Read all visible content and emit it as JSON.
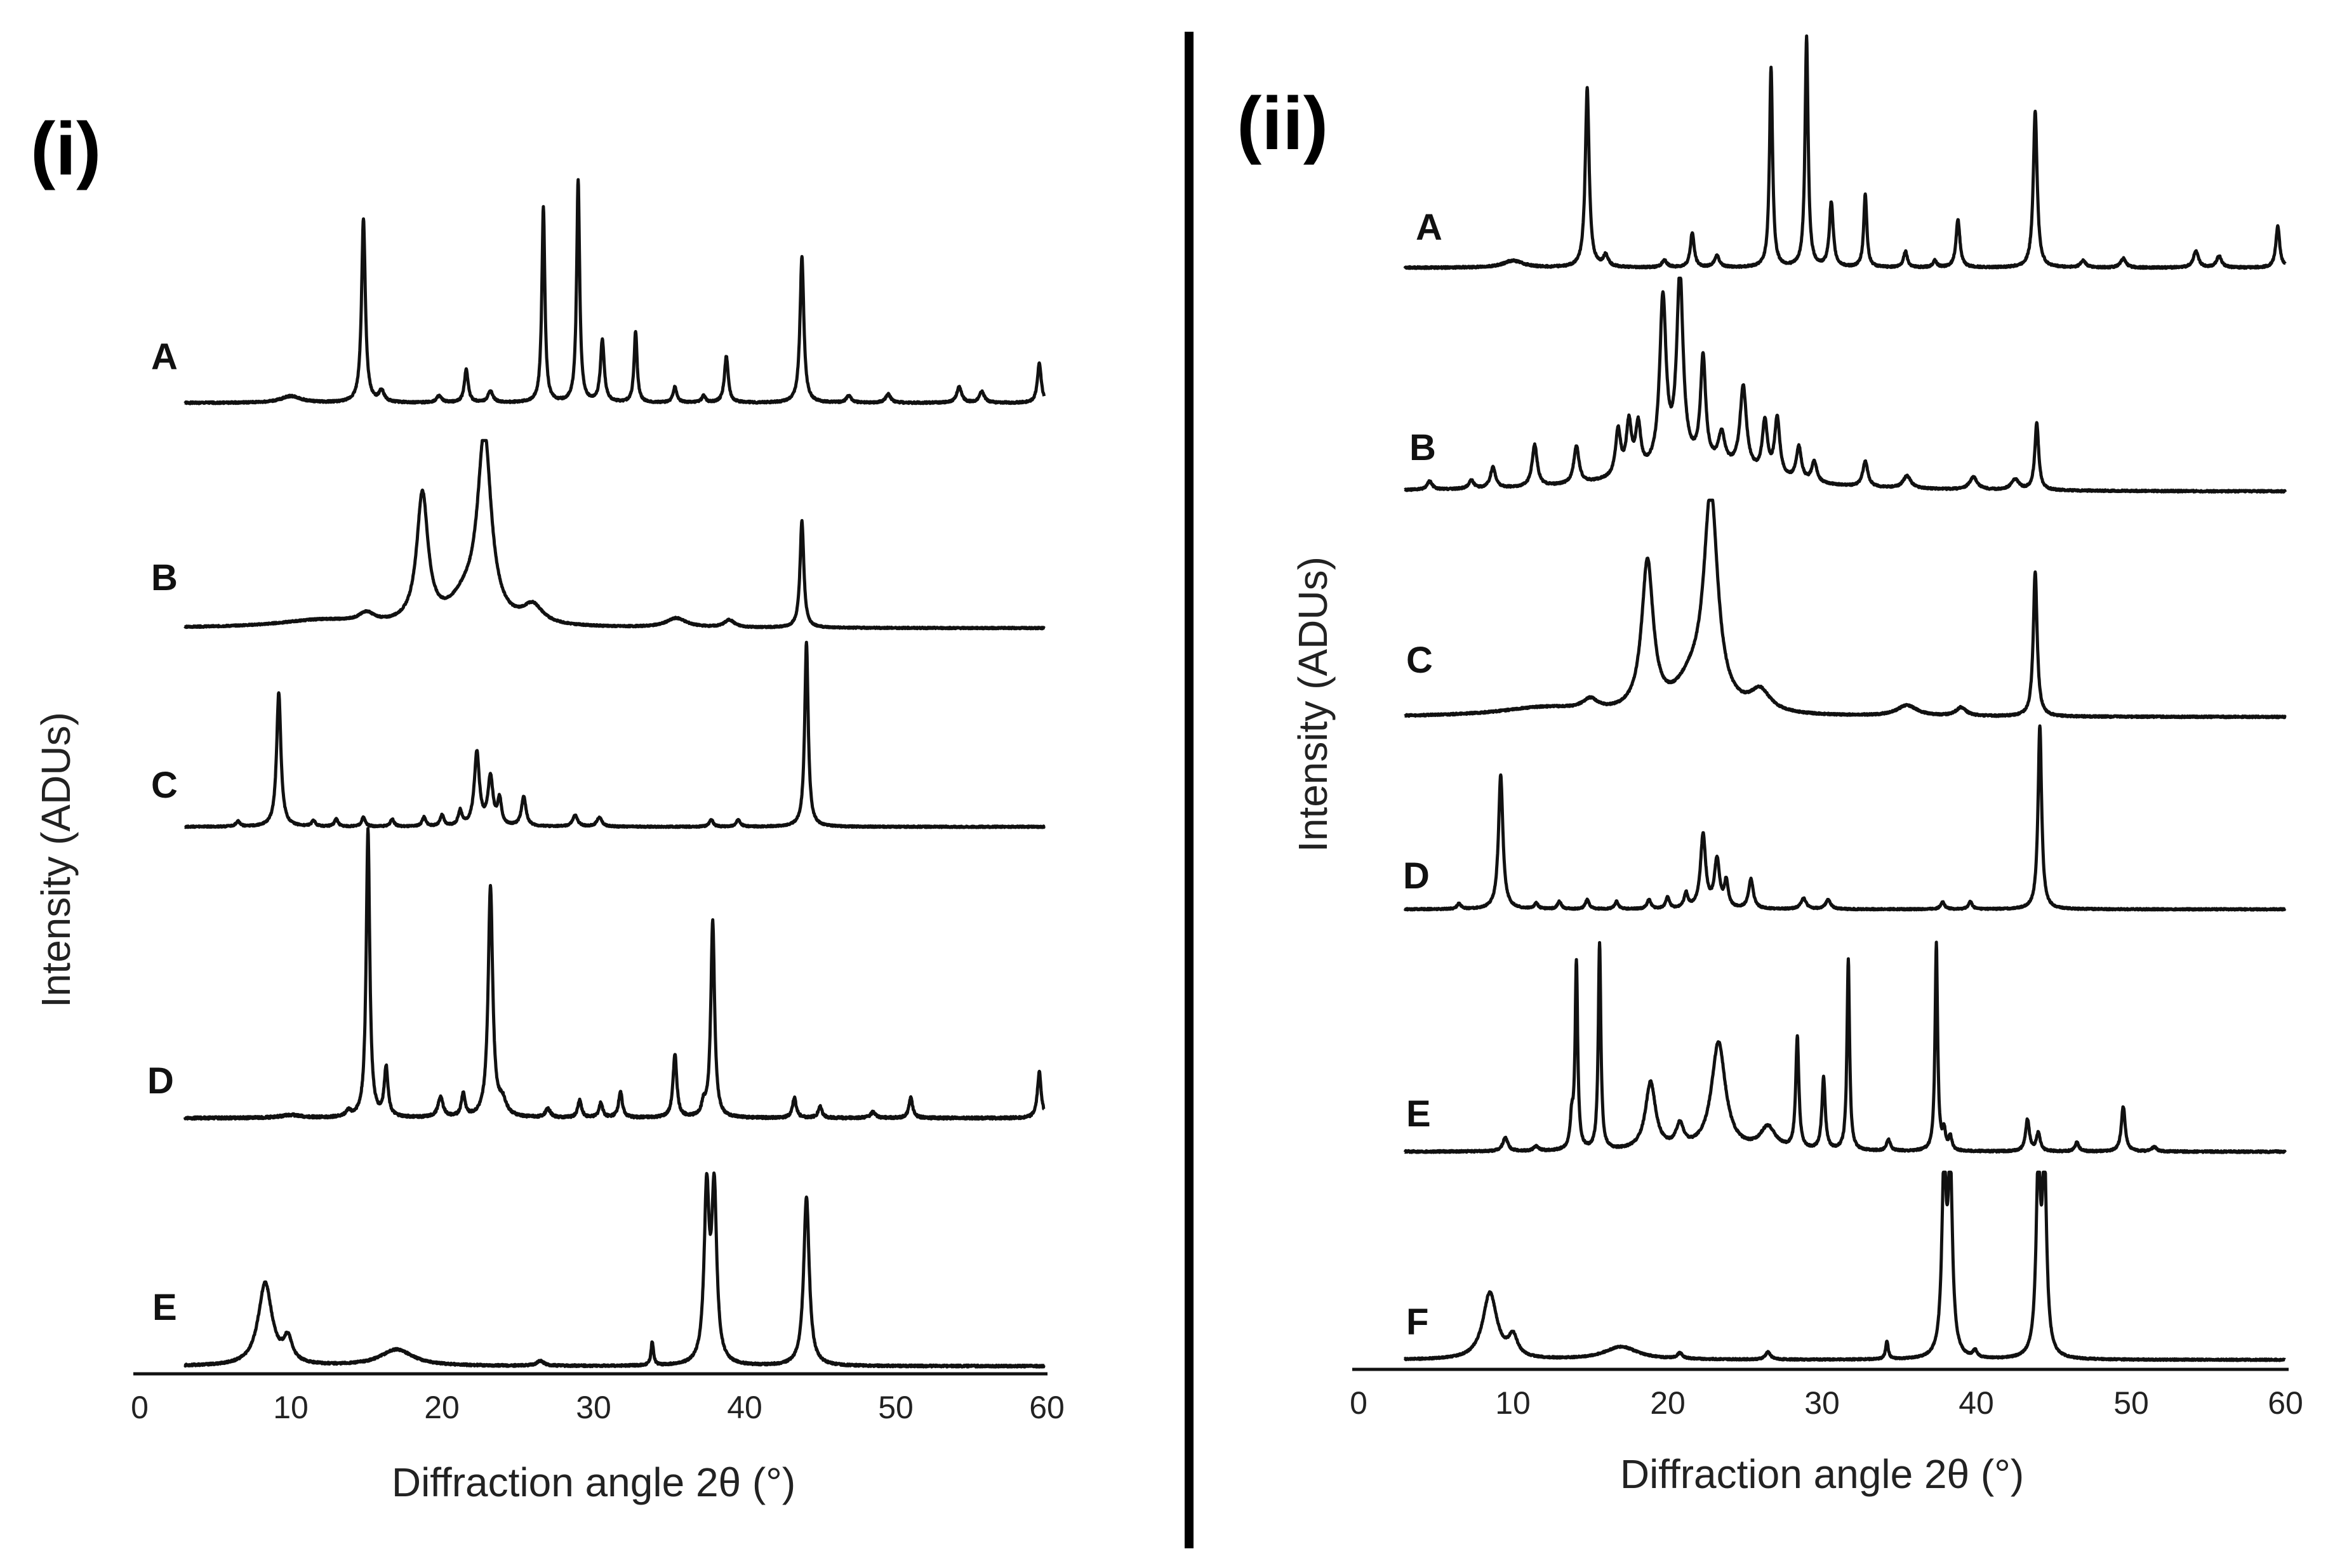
{
  "chart_data": [
    {
      "type": "line",
      "panel_label": "(i)",
      "xlabel": "Diffraction angle 2θ (°)",
      "ylabel": "Intensity (ADUs)",
      "xlim": [
        0,
        60
      ],
      "xticks": [
        "0",
        "10",
        "20",
        "30",
        "40",
        "50",
        "60"
      ],
      "series": [
        {
          "name": "A",
          "x_start": 3,
          "peaks": [
            {
              "x": 10.0,
              "h": 0.03,
              "w": 0.8
            },
            {
              "x": 14.8,
              "h": 0.83,
              "w": 0.15
            },
            {
              "x": 16.0,
              "h": 0.05,
              "w": 0.2
            },
            {
              "x": 19.8,
              "h": 0.03,
              "w": 0.2
            },
            {
              "x": 21.6,
              "h": 0.15,
              "w": 0.15
            },
            {
              "x": 23.2,
              "h": 0.05,
              "w": 0.2
            },
            {
              "x": 26.7,
              "h": 0.88,
              "w": 0.12
            },
            {
              "x": 29.0,
              "h": 1.0,
              "w": 0.12
            },
            {
              "x": 30.6,
              "h": 0.28,
              "w": 0.15
            },
            {
              "x": 32.8,
              "h": 0.32,
              "w": 0.12
            },
            {
              "x": 35.4,
              "h": 0.07,
              "w": 0.15
            },
            {
              "x": 37.3,
              "h": 0.03,
              "w": 0.15
            },
            {
              "x": 38.8,
              "h": 0.21,
              "w": 0.15
            },
            {
              "x": 43.8,
              "h": 0.66,
              "w": 0.15
            },
            {
              "x": 46.9,
              "h": 0.03,
              "w": 0.2
            },
            {
              "x": 49.5,
              "h": 0.04,
              "w": 0.2
            },
            {
              "x": 54.2,
              "h": 0.07,
              "w": 0.2
            },
            {
              "x": 55.7,
              "h": 0.05,
              "w": 0.2
            },
            {
              "x": 59.5,
              "h": 0.18,
              "w": 0.15
            }
          ]
        },
        {
          "name": "B",
          "x_start": 3,
          "peaks": [
            {
              "x": 12.0,
              "h": 0.04,
              "w": 3.5
            },
            {
              "x": 15.0,
              "h": 0.05,
              "w": 0.6
            },
            {
              "x": 18.7,
              "h": 0.7,
              "w": 0.45
            },
            {
              "x": 22.8,
              "h": 1.0,
              "w": 0.55
            },
            {
              "x": 21.5,
              "h": 0.12,
              "w": 1.2
            },
            {
              "x": 26.0,
              "h": 0.1,
              "w": 0.8
            },
            {
              "x": 35.5,
              "h": 0.05,
              "w": 0.8
            },
            {
              "x": 39.0,
              "h": 0.04,
              "w": 0.4
            },
            {
              "x": 43.8,
              "h": 0.58,
              "w": 0.15
            }
          ]
        },
        {
          "name": "C",
          "x_start": 3,
          "peaks": [
            {
              "x": 6.5,
              "h": 0.03,
              "w": 0.15
            },
            {
              "x": 9.2,
              "h": 0.73,
              "w": 0.17
            },
            {
              "x": 11.5,
              "h": 0.03,
              "w": 0.15
            },
            {
              "x": 13.0,
              "h": 0.04,
              "w": 0.15
            },
            {
              "x": 14.8,
              "h": 0.05,
              "w": 0.15
            },
            {
              "x": 16.7,
              "h": 0.04,
              "w": 0.15
            },
            {
              "x": 18.8,
              "h": 0.05,
              "w": 0.15
            },
            {
              "x": 20.0,
              "h": 0.06,
              "w": 0.15
            },
            {
              "x": 21.2,
              "h": 0.08,
              "w": 0.15
            },
            {
              "x": 22.3,
              "h": 0.4,
              "w": 0.2
            },
            {
              "x": 23.2,
              "h": 0.26,
              "w": 0.2
            },
            {
              "x": 23.8,
              "h": 0.14,
              "w": 0.15
            },
            {
              "x": 25.4,
              "h": 0.16,
              "w": 0.18
            },
            {
              "x": 28.8,
              "h": 0.06,
              "w": 0.2
            },
            {
              "x": 30.4,
              "h": 0.05,
              "w": 0.2
            },
            {
              "x": 37.8,
              "h": 0.04,
              "w": 0.15
            },
            {
              "x": 39.6,
              "h": 0.04,
              "w": 0.15
            },
            {
              "x": 44.1,
              "h": 1.0,
              "w": 0.14
            }
          ]
        },
        {
          "name": "D",
          "x_start": 3,
          "peaks": [
            {
              "x": 10.0,
              "h": 0.01,
              "w": 0.8
            },
            {
              "x": 13.8,
              "h": 0.02,
              "w": 0.2
            },
            {
              "x": 15.1,
              "h": 1.0,
              "w": 0.14
            },
            {
              "x": 16.3,
              "h": 0.17,
              "w": 0.15
            },
            {
              "x": 19.9,
              "h": 0.07,
              "w": 0.2
            },
            {
              "x": 21.4,
              "h": 0.08,
              "w": 0.15
            },
            {
              "x": 23.2,
              "h": 0.8,
              "w": 0.18
            },
            {
              "x": 24.0,
              "h": 0.05,
              "w": 0.3
            },
            {
              "x": 27.0,
              "h": 0.03,
              "w": 0.2
            },
            {
              "x": 29.1,
              "h": 0.06,
              "w": 0.15
            },
            {
              "x": 30.5,
              "h": 0.05,
              "w": 0.15
            },
            {
              "x": 31.8,
              "h": 0.09,
              "w": 0.15
            },
            {
              "x": 35.4,
              "h": 0.22,
              "w": 0.15
            },
            {
              "x": 37.3,
              "h": 0.04,
              "w": 0.15
            },
            {
              "x": 37.9,
              "h": 0.68,
              "w": 0.15
            },
            {
              "x": 43.3,
              "h": 0.07,
              "w": 0.15
            },
            {
              "x": 45.0,
              "h": 0.04,
              "w": 0.15
            },
            {
              "x": 48.5,
              "h": 0.02,
              "w": 0.2
            },
            {
              "x": 51.0,
              "h": 0.07,
              "w": 0.15
            },
            {
              "x": 59.5,
              "h": 0.16,
              "w": 0.15
            }
          ]
        },
        {
          "name": "E",
          "x_start": 3,
          "peaks": [
            {
              "x": 8.3,
              "h": 0.35,
              "w": 0.55
            },
            {
              "x": 9.8,
              "h": 0.1,
              "w": 0.35
            },
            {
              "x": 17.0,
              "h": 0.07,
              "w": 1.3
            },
            {
              "x": 26.5,
              "h": 0.02,
              "w": 0.3
            },
            {
              "x": 33.9,
              "h": 0.1,
              "w": 0.1
            },
            {
              "x": 37.5,
              "h": 0.72,
              "w": 0.2
            },
            {
              "x": 38.0,
              "h": 0.72,
              "w": 0.2
            },
            {
              "x": 44.1,
              "h": 0.72,
              "w": 0.22
            }
          ]
        }
      ]
    },
    {
      "type": "line",
      "panel_label": "(ii)",
      "xlabel": "Diffraction angle 2θ (°)",
      "ylabel": "Intensity (ADUs)",
      "xlim": [
        0,
        60
      ],
      "xticks": [
        "0",
        "10",
        "20",
        "30",
        "40",
        "50",
        "60"
      ],
      "series": [
        {
          "name": "A",
          "x_start": 3,
          "peaks": [
            {
              "x": 10.0,
              "h": 0.03,
              "w": 0.8
            },
            {
              "x": 14.8,
              "h": 0.78,
              "w": 0.15
            },
            {
              "x": 16.0,
              "h": 0.05,
              "w": 0.2
            },
            {
              "x": 19.8,
              "h": 0.03,
              "w": 0.2
            },
            {
              "x": 21.6,
              "h": 0.15,
              "w": 0.15
            },
            {
              "x": 23.2,
              "h": 0.05,
              "w": 0.2
            },
            {
              "x": 26.7,
              "h": 0.87,
              "w": 0.12
            },
            {
              "x": 29.0,
              "h": 1.0,
              "w": 0.12
            },
            {
              "x": 30.6,
              "h": 0.28,
              "w": 0.15
            },
            {
              "x": 32.8,
              "h": 0.32,
              "w": 0.12
            },
            {
              "x": 35.4,
              "h": 0.07,
              "w": 0.15
            },
            {
              "x": 37.3,
              "h": 0.03,
              "w": 0.15
            },
            {
              "x": 38.8,
              "h": 0.21,
              "w": 0.15
            },
            {
              "x": 43.8,
              "h": 0.68,
              "w": 0.15
            },
            {
              "x": 46.9,
              "h": 0.03,
              "w": 0.2
            },
            {
              "x": 49.5,
              "h": 0.04,
              "w": 0.2
            },
            {
              "x": 54.2,
              "h": 0.07,
              "w": 0.2
            },
            {
              "x": 55.7,
              "h": 0.05,
              "w": 0.2
            },
            {
              "x": 59.5,
              "h": 0.18,
              "w": 0.15
            }
          ]
        },
        {
          "name": "B",
          "x_start": 3,
          "peaks": [
            {
              "x": 4.6,
              "h": 0.04,
              "w": 0.2
            },
            {
              "x": 7.3,
              "h": 0.04,
              "w": 0.2
            },
            {
              "x": 8.7,
              "h": 0.1,
              "w": 0.2
            },
            {
              "x": 11.4,
              "h": 0.2,
              "w": 0.2
            },
            {
              "x": 14.1,
              "h": 0.18,
              "w": 0.2
            },
            {
              "x": 16.8,
              "h": 0.22,
              "w": 0.2
            },
            {
              "x": 17.5,
              "h": 0.24,
              "w": 0.2
            },
            {
              "x": 18.1,
              "h": 0.22,
              "w": 0.2
            },
            {
              "x": 19.7,
              "h": 0.8,
              "w": 0.25
            },
            {
              "x": 20.8,
              "h": 0.9,
              "w": 0.25
            },
            {
              "x": 22.3,
              "h": 0.5,
              "w": 0.2
            },
            {
              "x": 23.5,
              "h": 0.15,
              "w": 0.25
            },
            {
              "x": 24.9,
              "h": 0.4,
              "w": 0.25
            },
            {
              "x": 26.3,
              "h": 0.25,
              "w": 0.2
            },
            {
              "x": 27.1,
              "h": 0.28,
              "w": 0.2
            },
            {
              "x": 28.5,
              "h": 0.16,
              "w": 0.2
            },
            {
              "x": 29.5,
              "h": 0.1,
              "w": 0.2
            },
            {
              "x": 32.8,
              "h": 0.12,
              "w": 0.2
            },
            {
              "x": 35.5,
              "h": 0.06,
              "w": 0.3
            },
            {
              "x": 39.8,
              "h": 0.06,
              "w": 0.3
            },
            {
              "x": 42.5,
              "h": 0.05,
              "w": 0.3
            },
            {
              "x": 43.9,
              "h": 0.32,
              "w": 0.15
            },
            {
              "x": 22.0,
              "h": 0.12,
              "w": 5.0
            }
          ]
        },
        {
          "name": "C",
          "x_start": 3,
          "peaks": [
            {
              "x": 12.0,
              "h": 0.04,
              "w": 3.5
            },
            {
              "x": 15.0,
              "h": 0.05,
              "w": 0.6
            },
            {
              "x": 18.7,
              "h": 0.7,
              "w": 0.45
            },
            {
              "x": 22.8,
              "h": 1.0,
              "w": 0.55
            },
            {
              "x": 21.5,
              "h": 0.12,
              "w": 1.2
            },
            {
              "x": 26.0,
              "h": 0.1,
              "w": 0.8
            },
            {
              "x": 35.5,
              "h": 0.05,
              "w": 0.8
            },
            {
              "x": 39.0,
              "h": 0.04,
              "w": 0.4
            },
            {
              "x": 43.8,
              "h": 0.68,
              "w": 0.15
            }
          ]
        },
        {
          "name": "D",
          "x_start": 3,
          "peaks": [
            {
              "x": 6.5,
              "h": 0.03,
              "w": 0.15
            },
            {
              "x": 9.2,
              "h": 0.73,
              "w": 0.17
            },
            {
              "x": 11.5,
              "h": 0.03,
              "w": 0.15
            },
            {
              "x": 13.0,
              "h": 0.04,
              "w": 0.15
            },
            {
              "x": 14.8,
              "h": 0.05,
              "w": 0.15
            },
            {
              "x": 16.7,
              "h": 0.04,
              "w": 0.15
            },
            {
              "x": 18.8,
              "h": 0.05,
              "w": 0.15
            },
            {
              "x": 20.0,
              "h": 0.06,
              "w": 0.15
            },
            {
              "x": 21.2,
              "h": 0.08,
              "w": 0.15
            },
            {
              "x": 22.3,
              "h": 0.4,
              "w": 0.2
            },
            {
              "x": 23.2,
              "h": 0.26,
              "w": 0.2
            },
            {
              "x": 23.8,
              "h": 0.14,
              "w": 0.15
            },
            {
              "x": 25.4,
              "h": 0.16,
              "w": 0.18
            },
            {
              "x": 28.8,
              "h": 0.06,
              "w": 0.2
            },
            {
              "x": 30.4,
              "h": 0.05,
              "w": 0.2
            },
            {
              "x": 37.8,
              "h": 0.04,
              "w": 0.15
            },
            {
              "x": 39.6,
              "h": 0.04,
              "w": 0.15
            },
            {
              "x": 44.1,
              "h": 1.0,
              "w": 0.14
            }
          ]
        },
        {
          "name": "E",
          "x_start": 3,
          "peaks": [
            {
              "x": 9.5,
              "h": 0.06,
              "w": 0.2
            },
            {
              "x": 11.5,
              "h": 0.02,
              "w": 0.2
            },
            {
              "x": 13.8,
              "h": 0.13,
              "w": 0.12
            },
            {
              "x": 14.1,
              "h": 0.83,
              "w": 0.1
            },
            {
              "x": 15.6,
              "h": 0.92,
              "w": 0.1
            },
            {
              "x": 18.9,
              "h": 0.3,
              "w": 0.4
            },
            {
              "x": 20.8,
              "h": 0.1,
              "w": 0.3
            },
            {
              "x": 23.3,
              "h": 0.48,
              "w": 0.55
            },
            {
              "x": 26.5,
              "h": 0.1,
              "w": 0.6
            },
            {
              "x": 28.4,
              "h": 0.5,
              "w": 0.12
            },
            {
              "x": 30.1,
              "h": 0.32,
              "w": 0.13
            },
            {
              "x": 31.7,
              "h": 0.85,
              "w": 0.1
            },
            {
              "x": 34.3,
              "h": 0.05,
              "w": 0.15
            },
            {
              "x": 37.4,
              "h": 0.92,
              "w": 0.1
            },
            {
              "x": 37.9,
              "h": 0.08,
              "w": 0.12
            },
            {
              "x": 38.3,
              "h": 0.06,
              "w": 0.12
            },
            {
              "x": 43.3,
              "h": 0.14,
              "w": 0.15
            },
            {
              "x": 44.0,
              "h": 0.08,
              "w": 0.15
            },
            {
              "x": 46.5,
              "h": 0.04,
              "w": 0.15
            },
            {
              "x": 49.5,
              "h": 0.2,
              "w": 0.15
            },
            {
              "x": 51.5,
              "h": 0.02,
              "w": 0.2
            }
          ]
        },
        {
          "name": "F",
          "x_start": 3,
          "peaks": [
            {
              "x": 8.5,
              "h": 0.36,
              "w": 0.55
            },
            {
              "x": 10.0,
              "h": 0.11,
              "w": 0.35
            },
            {
              "x": 17.0,
              "h": 0.07,
              "w": 1.3
            },
            {
              "x": 20.8,
              "h": 0.03,
              "w": 0.2
            },
            {
              "x": 26.5,
              "h": 0.04,
              "w": 0.2
            },
            {
              "x": 34.2,
              "h": 0.1,
              "w": 0.1
            },
            {
              "x": 37.9,
              "h": 1.0,
              "w": 0.17
            },
            {
              "x": 38.3,
              "h": 1.0,
              "w": 0.17
            },
            {
              "x": 39.9,
              "h": 0.04,
              "w": 0.15
            },
            {
              "x": 44.0,
              "h": 1.0,
              "w": 0.17
            },
            {
              "x": 44.4,
              "h": 1.0,
              "w": 0.17
            }
          ]
        }
      ]
    }
  ]
}
